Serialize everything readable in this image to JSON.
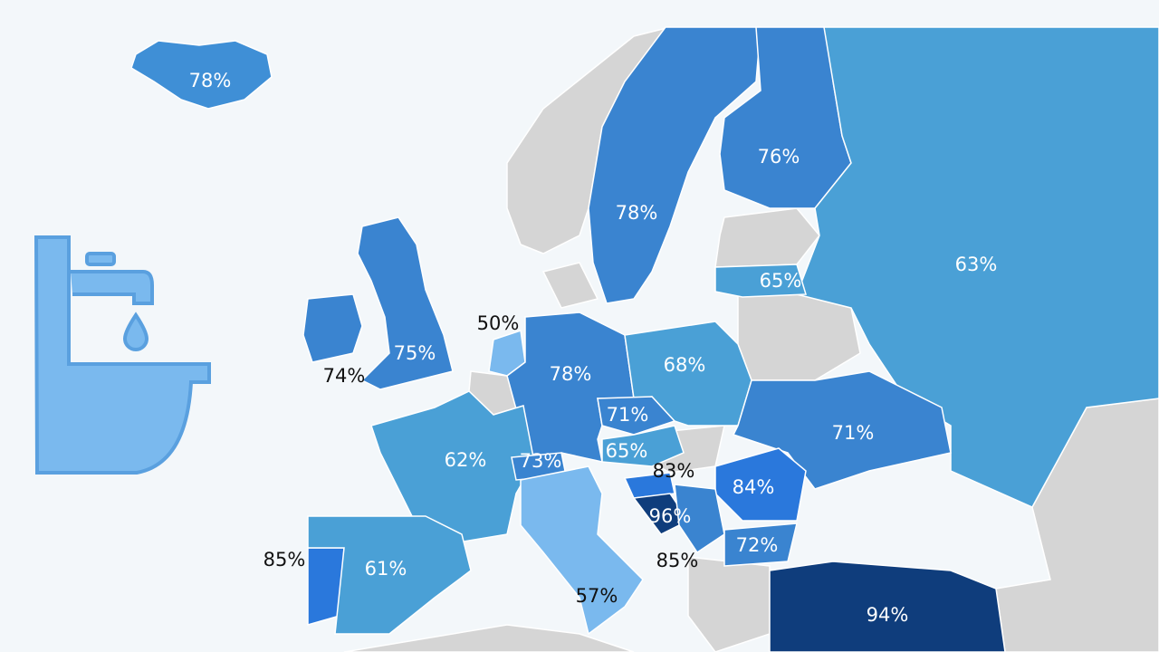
{
  "regions": [
    {
      "label": "78%",
      "color": "#3f8fd6"
    },
    {
      "label": "78%",
      "color": "#3a84d0"
    },
    {
      "label": "76%",
      "color": "#3a84d0"
    },
    {
      "label": "63%",
      "color": "#4aa0d6"
    },
    {
      "label": "65%",
      "color": "#4aa0d6"
    },
    {
      "label": "75%",
      "color": "#3a84d0"
    },
    {
      "label": "74%",
      "color": "#3a84d0"
    },
    {
      "label": "50%",
      "color": "#7ab9ee"
    },
    {
      "label": "78%",
      "color": "#3a84d0"
    },
    {
      "label": "68%",
      "color": "#4aa0d6"
    },
    {
      "label": "71%",
      "color": "#3a84d0"
    },
    {
      "label": "65%",
      "color": "#4aa0d6"
    },
    {
      "label": "71%",
      "color": "#3a84d0"
    },
    {
      "label": "62%",
      "color": "#4aa0d6"
    },
    {
      "label": "73%",
      "color": "#3a84d0"
    },
    {
      "label": "83%",
      "color": "#2a78dc"
    },
    {
      "label": "84%",
      "color": "#2a78dc"
    },
    {
      "label": "96%",
      "color": "#0f3d7c"
    },
    {
      "label": "85%",
      "color": "#3a84d0"
    },
    {
      "label": "72%",
      "color": "#3a84d0"
    },
    {
      "label": "85%",
      "color": "#2a78dc"
    },
    {
      "label": "61%",
      "color": "#4aa0d6"
    },
    {
      "label": "57%",
      "color": "#7ab9ee"
    },
    {
      "label": "94%",
      "color": "#0f3d7c"
    }
  ]
}
